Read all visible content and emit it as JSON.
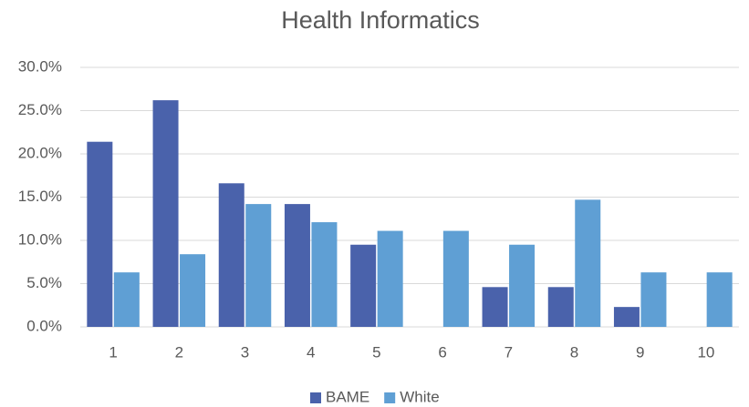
{
  "chart_data": {
    "type": "bar",
    "title": "Health Informatics",
    "categories": [
      "1",
      "2",
      "3",
      "4",
      "5",
      "6",
      "7",
      "8",
      "9",
      "10"
    ],
    "series": [
      {
        "name": "BAME",
        "color": "#4a62ab",
        "values": [
          21.4,
          26.2,
          16.6,
          14.2,
          9.5,
          0,
          4.6,
          4.6,
          2.3,
          0
        ]
      },
      {
        "name": "White",
        "color": "#5f9fd4",
        "values": [
          6.3,
          8.4,
          14.2,
          12.1,
          11.1,
          11.1,
          9.5,
          14.7,
          6.3,
          6.3
        ]
      }
    ],
    "ylim": [
      0,
      30
    ],
    "yticks": [
      {
        "value": 0,
        "label": "0.0%"
      },
      {
        "value": 5,
        "label": "5.0%"
      },
      {
        "value": 10,
        "label": "10.0%"
      },
      {
        "value": 15,
        "label": "15.0%"
      },
      {
        "value": 20,
        "label": "20.0%"
      },
      {
        "value": 25,
        "label": "25.0%"
      },
      {
        "value": 30,
        "label": "30.0%"
      }
    ],
    "grid": true,
    "legend": "bottom"
  }
}
